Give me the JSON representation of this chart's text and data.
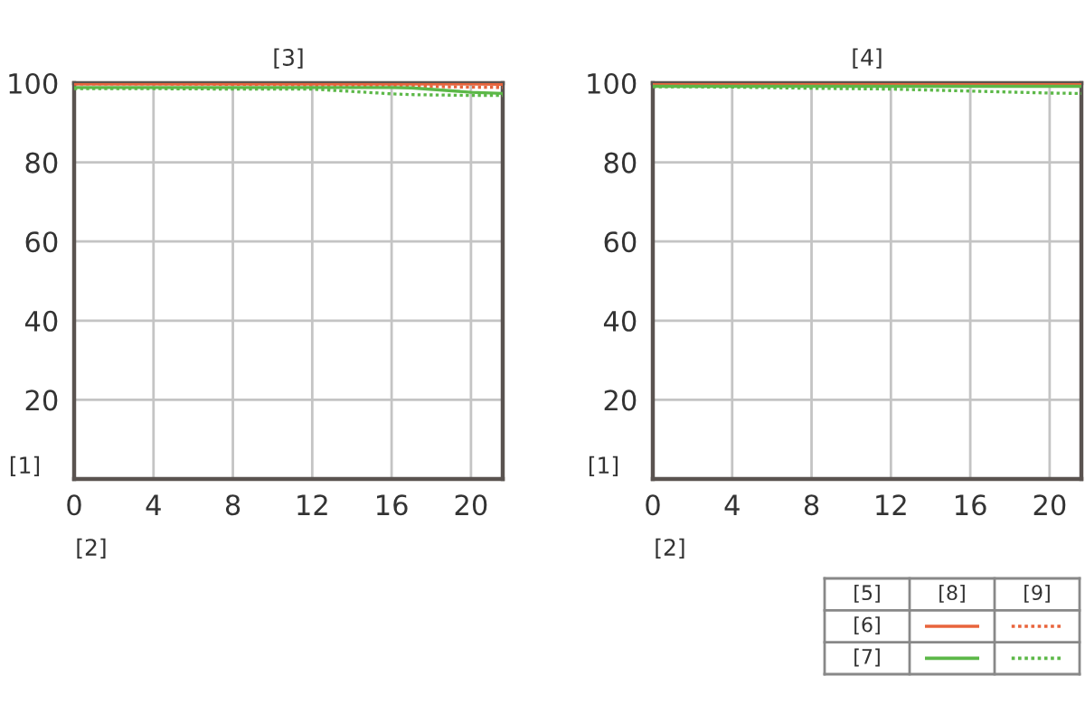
{
  "chart_data": [
    {
      "type": "line",
      "title": "[3]",
      "xlabel": "[2]",
      "ylabel": "[1]",
      "xlim": [
        0,
        21.6
      ],
      "xticks": [
        0,
        4,
        8,
        12,
        16,
        20
      ],
      "ylim": [
        0,
        100
      ],
      "yticks": [
        20,
        40,
        60,
        80,
        100
      ],
      "grid": true,
      "x": [
        0,
        4,
        8,
        12,
        16,
        17,
        20,
        21.6
      ],
      "series": [
        {
          "color": "#e8643c",
          "line_style": "solid",
          "values": [
            99.8,
            99.8,
            99.8,
            99.8,
            99.8,
            99.8,
            99.8,
            99.7
          ]
        },
        {
          "color": "#e8643c",
          "line_style": "dotted",
          "values": [
            99.8,
            99.8,
            99.7,
            99.5,
            99.3,
            99.2,
            99.0,
            98.9
          ]
        },
        {
          "color": "#5cb848",
          "line_style": "solid",
          "values": [
            98.9,
            98.9,
            98.9,
            98.9,
            98.9,
            98.8,
            97.7,
            97.4
          ]
        },
        {
          "color": "#5cb848",
          "line_style": "dotted",
          "values": [
            98.6,
            98.6,
            98.5,
            98.5,
            97.3,
            97.1,
            96.9,
            96.9
          ]
        }
      ]
    },
    {
      "type": "line",
      "title": "[4]",
      "xlabel": "[2]",
      "ylabel": "[1]",
      "xlim": [
        0,
        21.6
      ],
      "xticks": [
        0,
        4,
        8,
        12,
        16,
        20
      ],
      "ylim": [
        0,
        100
      ],
      "yticks": [
        20,
        40,
        60,
        80,
        100
      ],
      "grid": true,
      "legend": "bottom",
      "legend_title": "[5]",
      "annotations": [
        "[8]",
        "[9]"
      ],
      "x": [
        0,
        4,
        8,
        12,
        16,
        20,
        21.6
      ],
      "series": [
        {
          "name": "[6]",
          "color": "#e8643c",
          "line_style": "solid",
          "values": [
            99.8,
            99.8,
            99.8,
            99.8,
            99.8,
            99.8,
            99.8
          ]
        },
        {
          "color": "#e8643c",
          "line_style": "dotted",
          "values": [
            null,
            null,
            null,
            null,
            null,
            null,
            null
          ]
        },
        {
          "name": "[7]",
          "color": "#5cb848",
          "line_style": "solid",
          "values": [
            99.2,
            99.2,
            99.2,
            99.2,
            99.2,
            99.2,
            99.2
          ]
        },
        {
          "color": "#5cb848",
          "line_style": "dotted",
          "values": [
            99.1,
            99.0,
            98.7,
            98.5,
            98.0,
            97.5,
            97.4
          ]
        }
      ]
    }
  ]
}
